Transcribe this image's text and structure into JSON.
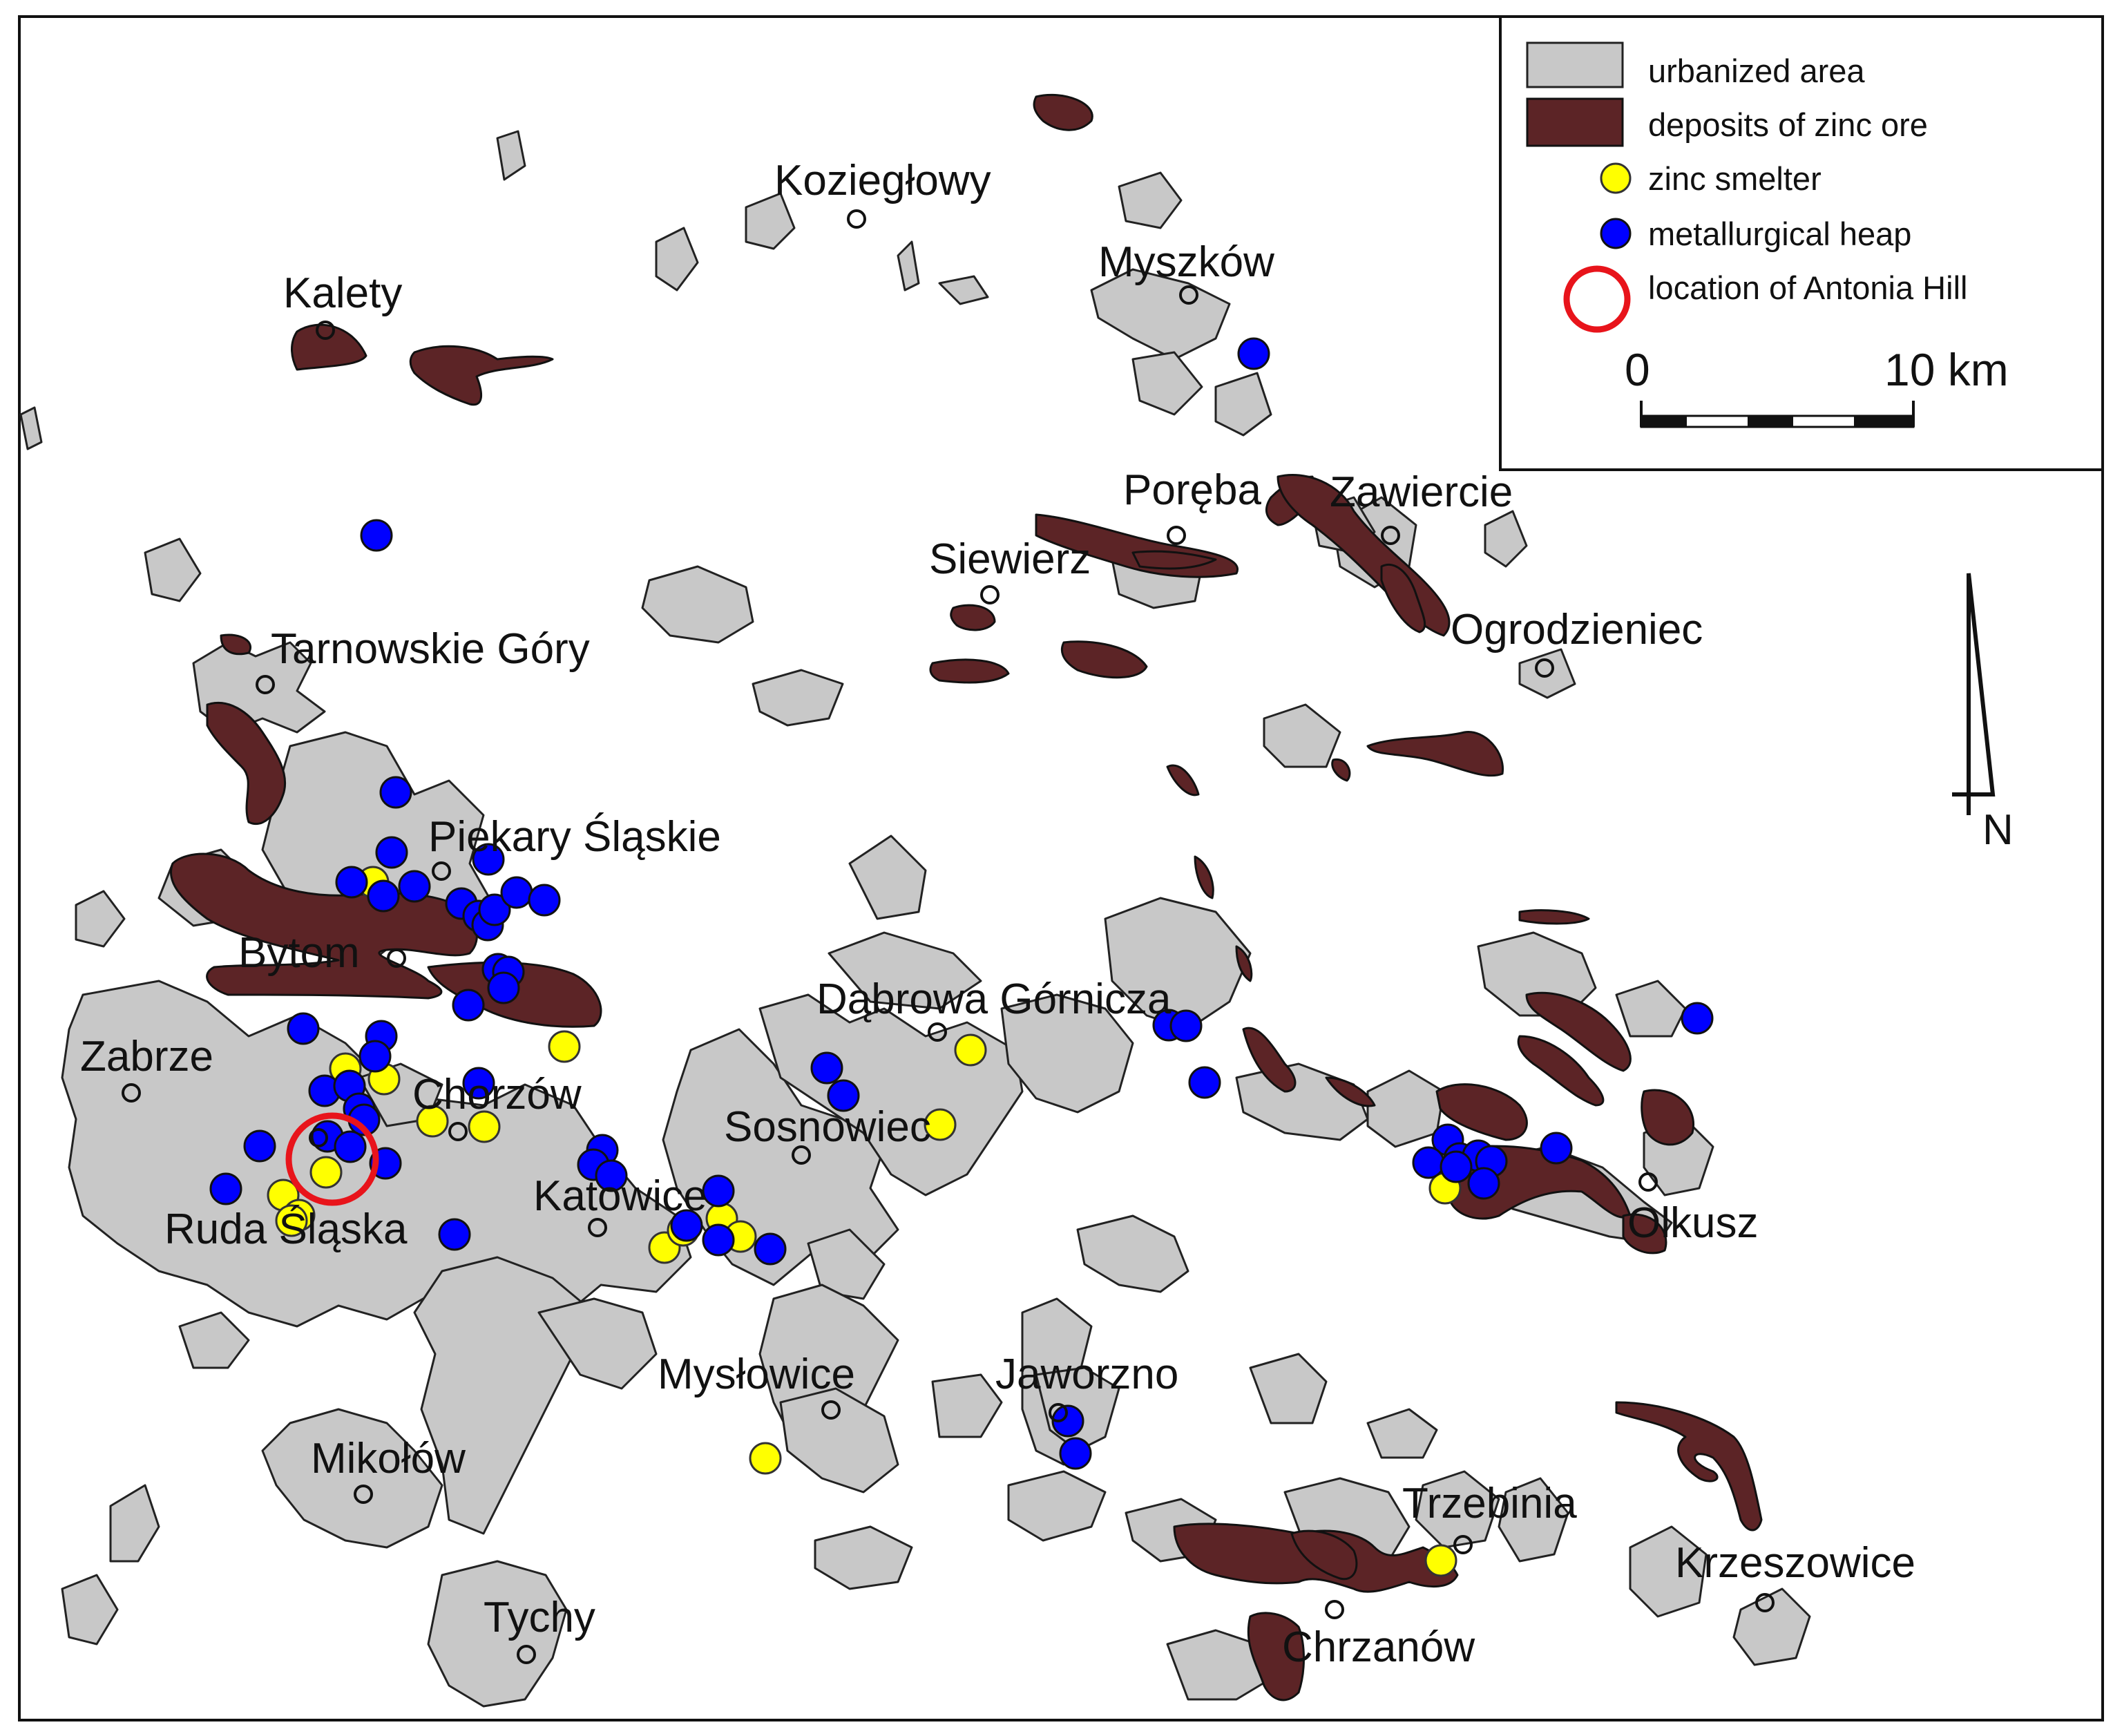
{
  "legend": {
    "urbanized_area": "urbanized area",
    "zinc_deposits": "deposits of zinc ore",
    "zinc_smelter": "zinc smelter",
    "metallurgical_heap": "metallurgical heap",
    "antonia_hill": "location of Antonia Hill"
  },
  "scale": {
    "start_label": "0",
    "end_label": "10 km"
  },
  "north": {
    "label": "N"
  },
  "towns": {
    "koziegłowy": "Koziegłowy",
    "kalety": "Kalety",
    "myszkow": "Myszków",
    "poreba": "Poręba",
    "zawiercie": "Zawiercie",
    "siewierz": "Siewierz",
    "ogrodzieniec": "Ogrodzieniec",
    "tarnowskie_gory": "Tarnowskie Góry",
    "piekary": "Piekary Śląskie",
    "bytom": "Bytom",
    "dabrowa": "Dąbrowa Górnicza",
    "zabrze": "Zabrze",
    "chorzow": "Chorzów",
    "sosnowiec": "Sosnowiec",
    "katowice": "Katowice",
    "ruda": "Ruda Śląska",
    "olkusz": "Olkusz",
    "myslowice": "Mysłowice",
    "jaworzno": "Jaworzno",
    "mikolow": "Mikołów",
    "trzebinia": "Trzebinia",
    "krzeszowice": "Krzeszowice",
    "tychy": "Tychy",
    "chrzanow": "Chrzanów"
  },
  "colors": {
    "urbanized_area": "#c8c8c8",
    "zinc_deposits": "#5c2426",
    "zinc_smelter": "#ffff00",
    "metallurgical_heap": "#0000ff",
    "antonia_hill": "#e8141b"
  }
}
